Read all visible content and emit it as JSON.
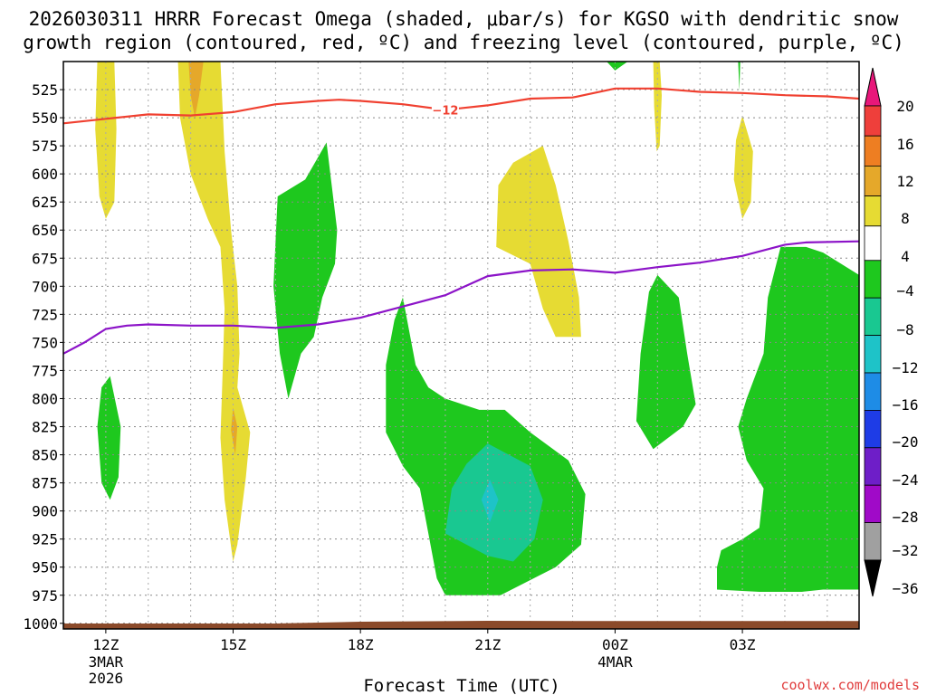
{
  "chart_data": {
    "type": "time-height contour",
    "title_line1": "2026030311 HRRR Forecast Omega (shaded, μbar/s) for KGSO with dendritic snow",
    "title_line2": "growth region (contoured, red, ºC) and freezing level (contoured, purple, ºC)",
    "xlabel": "Forecast Time (UTC)",
    "credit": "coolwx.com/models",
    "x_range_hours": [
      11,
      29.75
    ],
    "y_range_hPa": [
      500,
      1005
    ],
    "x_ticks": [
      {
        "hour": 12,
        "label": "12Z",
        "sub1": "3MAR",
        "sub2": "2026"
      },
      {
        "hour": 15,
        "label": "15Z",
        "sub1": "",
        "sub2": ""
      },
      {
        "hour": 18,
        "label": "18Z",
        "sub1": "",
        "sub2": ""
      },
      {
        "hour": 21,
        "label": "21Z",
        "sub1": "",
        "sub2": ""
      },
      {
        "hour": 24,
        "label": "00Z",
        "sub1": "4MAR",
        "sub2": ""
      },
      {
        "hour": 27,
        "label": "03Z",
        "sub1": "",
        "sub2": ""
      }
    ],
    "y_ticks": [
      "525",
      "550",
      "575",
      "600",
      "625",
      "650",
      "675",
      "700",
      "725",
      "750",
      "775",
      "800",
      "825",
      "850",
      "875",
      "900",
      "925",
      "950",
      "975",
      "1000"
    ],
    "colorbar": {
      "labels": [
        "20",
        "16",
        "12",
        "8",
        "4",
        "−4",
        "−8",
        "−12",
        "−16",
        "−20",
        "−24",
        "−28",
        "−32",
        "−36"
      ],
      "bands": [
        {
          "from": 16,
          "to": 20,
          "color": "#ef3f3b"
        },
        {
          "from": 12,
          "to": 16,
          "color": "#ee7e22"
        },
        {
          "from": 8,
          "to": 12,
          "color": "#e5a82a"
        },
        {
          "from": 4,
          "to": 8,
          "color": "#e6db33"
        },
        {
          "from": -4,
          "to": 4,
          "color": "#ffffff"
        },
        {
          "from": -8,
          "to": -4,
          "color": "#1ec81e"
        },
        {
          "from": -12,
          "to": -8,
          "color": "#19c891"
        },
        {
          "from": -16,
          "to": -12,
          "color": "#1ec3c8"
        },
        {
          "from": -20,
          "to": -16,
          "color": "#1e8ce6"
        },
        {
          "from": -24,
          "to": -20,
          "color": "#1e3ce6"
        },
        {
          "from": -28,
          "to": -24,
          "color": "#6e1ec8"
        },
        {
          "from": -32,
          "to": -28,
          "color": "#a00ac8"
        },
        {
          "from": -36,
          "to": -32,
          "color": "#a0a0a0"
        }
      ],
      "top_arrow_color": "#e8177a",
      "bottom_arrow_color": "#000000"
    },
    "shaded_regions": [
      {
        "level": "4 to 8",
        "color": "#e6db33",
        "points": [
          [
            11.8,
            500
          ],
          [
            12.2,
            500
          ],
          [
            12.25,
            560
          ],
          [
            12.2,
            625
          ],
          [
            12.0,
            640
          ],
          [
            11.85,
            620
          ],
          [
            11.75,
            560
          ]
        ]
      },
      {
        "level": "4 to 8",
        "color": "#e6db33",
        "points": [
          [
            13.7,
            500
          ],
          [
            14.7,
            500
          ],
          [
            14.8,
            580
          ],
          [
            14.95,
            650
          ],
          [
            15.1,
            700
          ],
          [
            15.15,
            760
          ],
          [
            15.1,
            790
          ],
          [
            15.4,
            830
          ],
          [
            15.3,
            870
          ],
          [
            15.1,
            930
          ],
          [
            15.0,
            945
          ],
          [
            14.8,
            890
          ],
          [
            14.7,
            835
          ],
          [
            14.75,
            780
          ],
          [
            14.8,
            720
          ],
          [
            14.7,
            665
          ],
          [
            14.4,
            640
          ],
          [
            14.0,
            600
          ],
          [
            13.75,
            550
          ]
        ]
      },
      {
        "level": "8 to 12",
        "color": "#e5a82a",
        "points": [
          [
            13.95,
            500
          ],
          [
            14.3,
            500
          ],
          [
            14.2,
            530
          ],
          [
            14.1,
            550
          ],
          [
            14.0,
            530
          ]
        ]
      },
      {
        "level": "8 to 12",
        "color": "#e5a82a",
        "points": [
          [
            15.0,
            808
          ],
          [
            15.1,
            825
          ],
          [
            15.05,
            850
          ],
          [
            14.95,
            828
          ]
        ]
      },
      {
        "level": "4 to 8",
        "color": "#e6db33",
        "points": [
          [
            22.3,
            575
          ],
          [
            22.6,
            610
          ],
          [
            22.9,
            660
          ],
          [
            23.15,
            710
          ],
          [
            23.2,
            745
          ],
          [
            22.6,
            745
          ],
          [
            22.3,
            720
          ],
          [
            22.0,
            680
          ],
          [
            21.2,
            665
          ],
          [
            21.25,
            610
          ],
          [
            21.6,
            590
          ]
        ]
      },
      {
        "level": "4 to 8",
        "color": "#e6db33",
        "points": [
          [
            24.9,
            500
          ],
          [
            25.05,
            500
          ],
          [
            25.1,
            530
          ],
          [
            25.05,
            575
          ],
          [
            24.98,
            580
          ],
          [
            24.92,
            540
          ]
        ]
      },
      {
        "level": "4 to 8",
        "color": "#e6db33",
        "points": [
          [
            27.0,
            548
          ],
          [
            27.25,
            580
          ],
          [
            27.2,
            625
          ],
          [
            27.0,
            640
          ],
          [
            26.8,
            605
          ],
          [
            26.85,
            570
          ]
        ]
      },
      {
        "level": "-4 to -8",
        "color": "#1ec81e",
        "points": [
          [
            17.2,
            572
          ],
          [
            17.45,
            650
          ],
          [
            17.4,
            680
          ],
          [
            17.1,
            710
          ],
          [
            16.9,
            745
          ],
          [
            16.6,
            760
          ],
          [
            16.3,
            800
          ],
          [
            16.1,
            760
          ],
          [
            15.95,
            700
          ],
          [
            16.05,
            620
          ],
          [
            16.7,
            605
          ]
        ]
      },
      {
        "level": "-4 to -8",
        "color": "#1ec81e",
        "points": [
          [
            19.0,
            710
          ],
          [
            19.3,
            770
          ],
          [
            19.6,
            790
          ],
          [
            20.0,
            800
          ],
          [
            20.8,
            810
          ],
          [
            21.4,
            810
          ],
          [
            22.0,
            830
          ],
          [
            22.9,
            855
          ],
          [
            23.3,
            885
          ],
          [
            23.2,
            930
          ],
          [
            22.6,
            950
          ],
          [
            21.3,
            975
          ],
          [
            20.0,
            975
          ],
          [
            19.8,
            960
          ],
          [
            19.6,
            920
          ],
          [
            19.4,
            880
          ],
          [
            19.0,
            860
          ],
          [
            18.6,
            830
          ],
          [
            18.6,
            770
          ],
          [
            18.8,
            730
          ]
        ]
      },
      {
        "level": "-8 to -12",
        "color": "#19c891",
        "points": [
          [
            21.0,
            840
          ],
          [
            22.0,
            860
          ],
          [
            22.3,
            890
          ],
          [
            22.1,
            925
          ],
          [
            21.6,
            945
          ],
          [
            21.0,
            940
          ],
          [
            20.0,
            920
          ],
          [
            20.15,
            880
          ],
          [
            20.5,
            858
          ]
        ]
      },
      {
        "level": "-12 to -16",
        "color": "#1ec3c8",
        "points": [
          [
            21.05,
            872
          ],
          [
            21.25,
            890
          ],
          [
            21.05,
            910
          ],
          [
            20.85,
            890
          ]
        ]
      },
      {
        "level": "-4 to -8",
        "color": "#1ec81e",
        "points": [
          [
            12.1,
            780
          ],
          [
            12.35,
            825
          ],
          [
            12.3,
            870
          ],
          [
            12.1,
            890
          ],
          [
            11.9,
            875
          ],
          [
            11.8,
            825
          ],
          [
            11.9,
            790
          ]
        ]
      },
      {
        "level": "-4 to -8",
        "color": "#1ec81e",
        "points": [
          [
            25.0,
            690
          ],
          [
            25.5,
            710
          ],
          [
            25.7,
            760
          ],
          [
            25.9,
            805
          ],
          [
            25.6,
            825
          ],
          [
            24.9,
            845
          ],
          [
            24.5,
            820
          ],
          [
            24.6,
            760
          ],
          [
            24.8,
            705
          ]
        ]
      },
      {
        "level": "-4 to -8",
        "color": "#1ec81e",
        "points": [
          [
            27.9,
            665
          ],
          [
            28.5,
            665
          ],
          [
            28.9,
            670
          ],
          [
            29.75,
            690
          ],
          [
            29.75,
            970
          ],
          [
            28.9,
            970
          ],
          [
            28.4,
            972
          ],
          [
            27.4,
            972
          ],
          [
            26.4,
            970
          ],
          [
            26.4,
            950
          ],
          [
            26.5,
            935
          ],
          [
            27.0,
            925
          ],
          [
            27.4,
            915
          ],
          [
            27.5,
            880
          ],
          [
            27.1,
            855
          ],
          [
            26.9,
            825
          ],
          [
            27.1,
            800
          ],
          [
            27.5,
            760
          ],
          [
            27.6,
            710
          ]
        ]
      },
      {
        "level": "-4 to -8",
        "color": "#1ec81e",
        "points": [
          [
            23.8,
            500
          ],
          [
            24.3,
            500
          ],
          [
            24.0,
            508
          ]
        ]
      },
      {
        "level": "-4 to -8",
        "color": "#1ec81e",
        "points": [
          [
            26.9,
            500
          ],
          [
            26.95,
            500
          ],
          [
            26.93,
            526
          ]
        ]
      }
    ],
    "dgz_contour": {
      "label": "−12",
      "label_hour": 20.0,
      "color": "#f04030",
      "points": [
        [
          11.0,
          555
        ],
        [
          12.0,
          551
        ],
        [
          13.0,
          547
        ],
        [
          14.0,
          548
        ],
        [
          15.0,
          545
        ],
        [
          16.0,
          538
        ],
        [
          17.0,
          535
        ],
        [
          17.5,
          534
        ],
        [
          18.0,
          535
        ],
        [
          19.0,
          538
        ],
        [
          20.0,
          543
        ],
        [
          21.0,
          539
        ],
        [
          22.0,
          533
        ],
        [
          23.0,
          532
        ],
        [
          24.0,
          524
        ],
        [
          25.0,
          524
        ],
        [
          26.0,
          527
        ],
        [
          27.0,
          528
        ],
        [
          28.0,
          530
        ],
        [
          29.0,
          531
        ],
        [
          29.75,
          533
        ]
      ]
    },
    "freezing_level_contour": {
      "color": "#8c14c8",
      "points": [
        [
          11.0,
          760
        ],
        [
          11.5,
          750
        ],
        [
          12.0,
          738
        ],
        [
          12.5,
          735
        ],
        [
          13.0,
          734
        ],
        [
          14.0,
          735
        ],
        [
          15.0,
          735
        ],
        [
          16.0,
          737
        ],
        [
          17.0,
          734
        ],
        [
          18.0,
          728
        ],
        [
          19.0,
          718
        ],
        [
          20.0,
          708
        ],
        [
          21.0,
          691
        ],
        [
          22.0,
          686
        ],
        [
          23.0,
          685
        ],
        [
          24.0,
          688
        ],
        [
          25.0,
          683
        ],
        [
          26.0,
          679
        ],
        [
          27.0,
          673
        ],
        [
          28.0,
          663
        ],
        [
          28.5,
          661
        ],
        [
          29.75,
          660
        ]
      ]
    },
    "ground_bar": {
      "color": "#8b4a2a",
      "pressure_start_hPa": 1005,
      "pressure_end_hPa": 998
    }
  }
}
